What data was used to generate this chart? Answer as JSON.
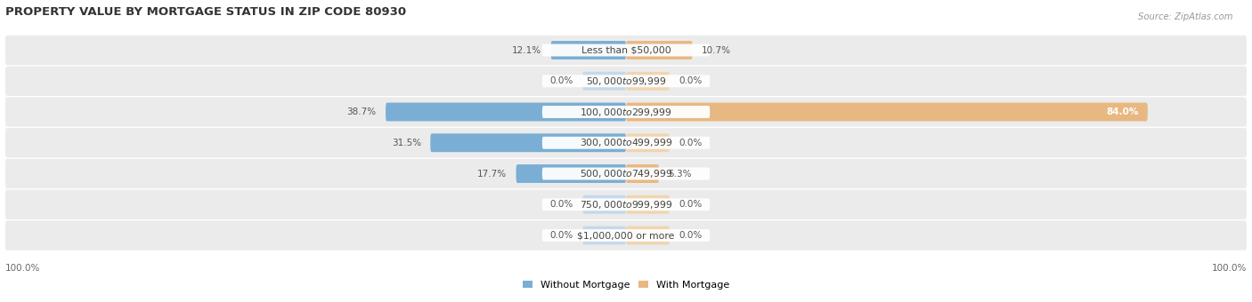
{
  "title": "PROPERTY VALUE BY MORTGAGE STATUS IN ZIP CODE 80930",
  "source": "Source: ZipAtlas.com",
  "categories": [
    "Less than $50,000",
    "$50,000 to $99,999",
    "$100,000 to $299,999",
    "$300,000 to $499,999",
    "$500,000 to $749,999",
    "$750,000 to $999,999",
    "$1,000,000 or more"
  ],
  "without_mortgage": [
    12.1,
    0.0,
    38.7,
    31.5,
    17.7,
    0.0,
    0.0
  ],
  "with_mortgage": [
    10.7,
    0.0,
    84.0,
    0.0,
    5.3,
    0.0,
    0.0
  ],
  "without_mortgage_color": "#7aaed4",
  "with_mortgage_color": "#e8b882",
  "row_bg_color": "#ebebeb",
  "zero_bar_color_blue": "#c5d9ec",
  "zero_bar_color_orange": "#f0d5b0",
  "legend_without": "Without Mortgage",
  "legend_with": "With Mortgage",
  "x_axis_left_label": "100.0%",
  "x_axis_right_label": "100.0%",
  "title_fontsize": 9.5,
  "label_fontsize": 7.5,
  "cat_fontsize": 7.8
}
